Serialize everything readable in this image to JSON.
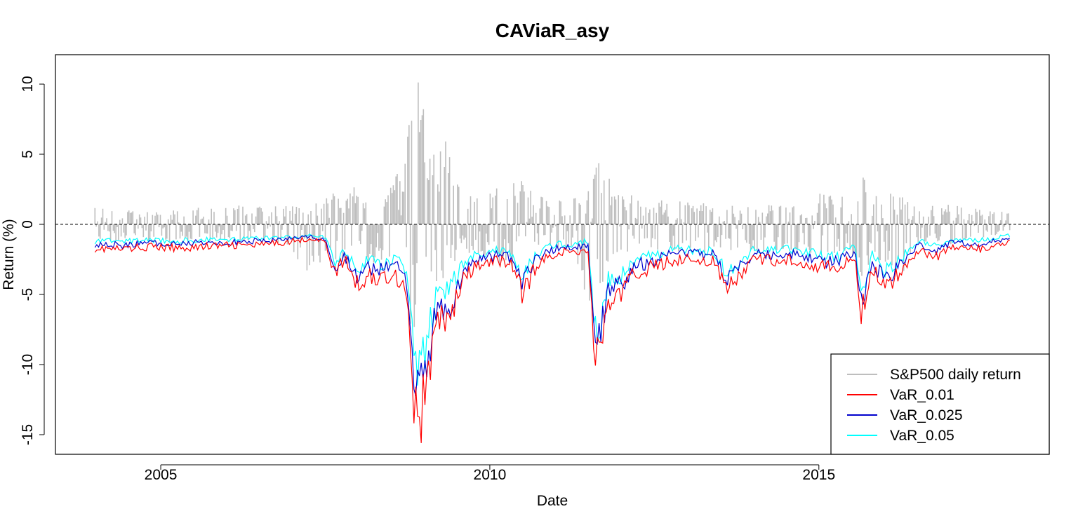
{
  "chart_data": {
    "type": "line",
    "title": "CAViaR_asy",
    "xlabel": "Date",
    "ylabel": "Return (%)",
    "x_ticks": [
      "2005",
      "2010",
      "2015"
    ],
    "y_ticks": [
      "10",
      "5",
      "0",
      "-5",
      "-10",
      "-15"
    ],
    "xlim": [
      2003.4,
      2018.5
    ],
    "ylim": [
      -16.4,
      12.1
    ],
    "legend_position": "bottom-right",
    "reference_line": {
      "y": 0,
      "style": "dashed"
    },
    "grid": false,
    "series": [
      {
        "name": "S&P500 daily return",
        "color": "#bebebe",
        "style": "bars",
        "x": [
          2004.0,
          2004.5,
          2005.0,
          2005.5,
          2006.0,
          2006.5,
          2007.0,
          2007.2,
          2007.5,
          2007.75,
          2008.0,
          2008.3,
          2008.5,
          2008.7,
          2008.8,
          2008.85,
          2008.95,
          2009.1,
          2009.3,
          2009.5,
          2009.75,
          2010.0,
          2010.3,
          2010.5,
          2010.75,
          2011.0,
          2011.3,
          2011.55,
          2011.62,
          2011.7,
          2011.8,
          2012.0,
          2012.5,
          2013.0,
          2013.5,
          2014.0,
          2014.5,
          2014.8,
          2015.0,
          2015.5,
          2015.65,
          2015.8,
          2016.0,
          2016.1,
          2016.4,
          2016.5,
          2017.0,
          2017.5,
          2017.9
        ],
        "high": [
          1.3,
          1.2,
          1.1,
          1.2,
          1.4,
          1.3,
          1.6,
          1.2,
          2.5,
          2.4,
          2.8,
          2.4,
          4.1,
          4.0,
          8.5,
          11.0,
          10.0,
          5.0,
          6.8,
          3.0,
          2.2,
          2.5,
          3.0,
          3.3,
          2.2,
          1.8,
          2.0,
          3.0,
          4.6,
          4.4,
          3.5,
          2.2,
          1.8,
          1.6,
          1.5,
          1.6,
          1.3,
          2.3,
          2.4,
          2.0,
          3.8,
          2.9,
          2.6,
          2.5,
          1.5,
          1.5,
          1.4,
          1.1,
          0.9
        ],
        "low": [
          -1.2,
          -1.2,
          -1.3,
          -1.3,
          -1.2,
          -1.5,
          -1.8,
          -3.5,
          -2.5,
          -2.8,
          -3.5,
          -3.0,
          -3.0,
          -4.5,
          -7.5,
          -9.0,
          -7.0,
          -5.0,
          -4.0,
          -2.5,
          -2.0,
          -2.5,
          -3.5,
          -3.0,
          -2.0,
          -1.8,
          -2.5,
          -6.7,
          -6.6,
          -5.0,
          -3.5,
          -2.0,
          -1.8,
          -2.2,
          -2.0,
          -2.0,
          -1.8,
          -2.0,
          -2.2,
          -2.0,
          -4.0,
          -2.8,
          -2.8,
          -3.0,
          -3.6,
          -1.5,
          -1.5,
          -1.0,
          -0.8
        ]
      },
      {
        "name": "VaR_0.01",
        "color": "#ff0000",
        "x": [
          2004.0,
          2004.4,
          2004.8,
          2005.2,
          2005.6,
          2006.0,
          2006.5,
          2007.0,
          2007.3,
          2007.5,
          2007.65,
          2007.8,
          2008.0,
          2008.15,
          2008.3,
          2008.5,
          2008.65,
          2008.75,
          2008.85,
          2008.93,
          2009.05,
          2009.2,
          2009.4,
          2009.6,
          2009.8,
          2010.0,
          2010.2,
          2010.35,
          2010.5,
          2010.7,
          2011.0,
          2011.3,
          2011.5,
          2011.58,
          2011.64,
          2011.8,
          2012.0,
          2012.2,
          2012.5,
          2012.8,
          2013.0,
          2013.4,
          2013.6,
          2014.0,
          2014.2,
          2014.5,
          2014.8,
          2015.0,
          2015.3,
          2015.55,
          2015.65,
          2015.8,
          2016.0,
          2016.1,
          2016.3,
          2016.5,
          2016.8,
          2017.0,
          2017.5,
          2017.9
        ],
        "y": [
          -1.7,
          -1.8,
          -1.6,
          -1.7,
          -1.6,
          -1.5,
          -1.5,
          -1.2,
          -1.0,
          -1.3,
          -3.5,
          -2.5,
          -4.5,
          -3.5,
          -4.0,
          -3.5,
          -4.0,
          -5.0,
          -13.0,
          -14.5,
          -11.0,
          -7.0,
          -6.5,
          -4.0,
          -3.0,
          -2.8,
          -2.5,
          -3.0,
          -5.0,
          -3.0,
          -2.0,
          -2.0,
          -1.8,
          -8.8,
          -9.5,
          -5.5,
          -5.0,
          -3.5,
          -3.0,
          -2.5,
          -2.5,
          -2.6,
          -4.8,
          -2.5,
          -2.6,
          -2.5,
          -2.7,
          -3.0,
          -3.2,
          -2.3,
          -6.5,
          -3.0,
          -4.5,
          -4.2,
          -3.0,
          -1.8,
          -2.3,
          -1.6,
          -1.8,
          -1.3
        ]
      },
      {
        "name": "VaR_0.025",
        "color": "#0000cd",
        "x": [
          2004.0,
          2004.4,
          2004.8,
          2005.2,
          2005.6,
          2006.0,
          2006.5,
          2007.0,
          2007.3,
          2007.5,
          2007.65,
          2007.8,
          2008.0,
          2008.15,
          2008.3,
          2008.5,
          2008.65,
          2008.75,
          2008.85,
          2008.93,
          2009.05,
          2009.2,
          2009.4,
          2009.6,
          2009.8,
          2010.0,
          2010.2,
          2010.35,
          2010.5,
          2010.7,
          2011.0,
          2011.3,
          2011.5,
          2011.58,
          2011.64,
          2011.8,
          2012.0,
          2012.2,
          2012.5,
          2012.8,
          2013.0,
          2013.4,
          2013.6,
          2014.0,
          2014.2,
          2014.5,
          2014.8,
          2015.0,
          2015.3,
          2015.55,
          2015.65,
          2015.8,
          2016.0,
          2016.1,
          2016.3,
          2016.5,
          2016.8,
          2017.0,
          2017.5,
          2017.9
        ],
        "y": [
          -1.4,
          -1.5,
          -1.3,
          -1.4,
          -1.3,
          -1.3,
          -1.2,
          -1.0,
          -0.9,
          -1.1,
          -3.3,
          -2.3,
          -3.8,
          -3.0,
          -3.3,
          -3.0,
          -3.3,
          -4.5,
          -11.0,
          -12.0,
          -9.5,
          -6.0,
          -5.8,
          -3.4,
          -2.6,
          -2.4,
          -2.1,
          -2.5,
          -4.3,
          -2.5,
          -1.7,
          -1.7,
          -1.5,
          -7.8,
          -9.0,
          -4.6,
          -4.3,
          -3.0,
          -2.6,
          -2.1,
          -2.1,
          -2.2,
          -4.2,
          -2.1,
          -2.2,
          -2.1,
          -2.3,
          -2.6,
          -2.7,
          -1.9,
          -5.8,
          -2.6,
          -4.0,
          -3.7,
          -2.6,
          -1.5,
          -2.0,
          -1.3,
          -1.4,
          -1.0
        ]
      },
      {
        "name": "VaR_0.05",
        "color": "#00ffff",
        "x": [
          2004.0,
          2004.4,
          2004.8,
          2005.2,
          2005.6,
          2006.0,
          2006.5,
          2007.0,
          2007.3,
          2007.5,
          2007.65,
          2007.8,
          2008.0,
          2008.15,
          2008.3,
          2008.5,
          2008.65,
          2008.75,
          2008.85,
          2008.93,
          2009.05,
          2009.2,
          2009.4,
          2009.6,
          2009.8,
          2010.0,
          2010.2,
          2010.35,
          2010.5,
          2010.7,
          2011.0,
          2011.3,
          2011.5,
          2011.58,
          2011.64,
          2011.8,
          2012.0,
          2012.2,
          2012.5,
          2012.8,
          2013.0,
          2013.4,
          2013.6,
          2014.0,
          2014.2,
          2014.5,
          2014.8,
          2015.0,
          2015.3,
          2015.55,
          2015.65,
          2015.8,
          2016.0,
          2016.1,
          2016.3,
          2016.5,
          2016.8,
          2017.0,
          2017.5,
          2017.9
        ],
        "y": [
          -1.2,
          -1.2,
          -1.1,
          -1.2,
          -1.1,
          -1.1,
          -1.0,
          -0.9,
          -0.8,
          -0.9,
          -2.7,
          -1.9,
          -3.2,
          -2.6,
          -2.9,
          -2.5,
          -2.8,
          -3.5,
          -9.0,
          -10.5,
          -8.0,
          -5.0,
          -4.5,
          -2.9,
          -2.2,
          -2.0,
          -1.8,
          -2.2,
          -3.8,
          -2.1,
          -1.4,
          -1.4,
          -1.2,
          -6.5,
          -8.0,
          -4.0,
          -3.6,
          -2.5,
          -2.2,
          -1.8,
          -1.8,
          -1.9,
          -3.5,
          -1.8,
          -1.9,
          -1.8,
          -1.9,
          -2.2,
          -2.3,
          -1.6,
          -5.0,
          -2.2,
          -3.3,
          -3.1,
          -2.2,
          -1.2,
          -1.6,
          -1.1,
          -1.1,
          -0.8
        ]
      }
    ]
  }
}
